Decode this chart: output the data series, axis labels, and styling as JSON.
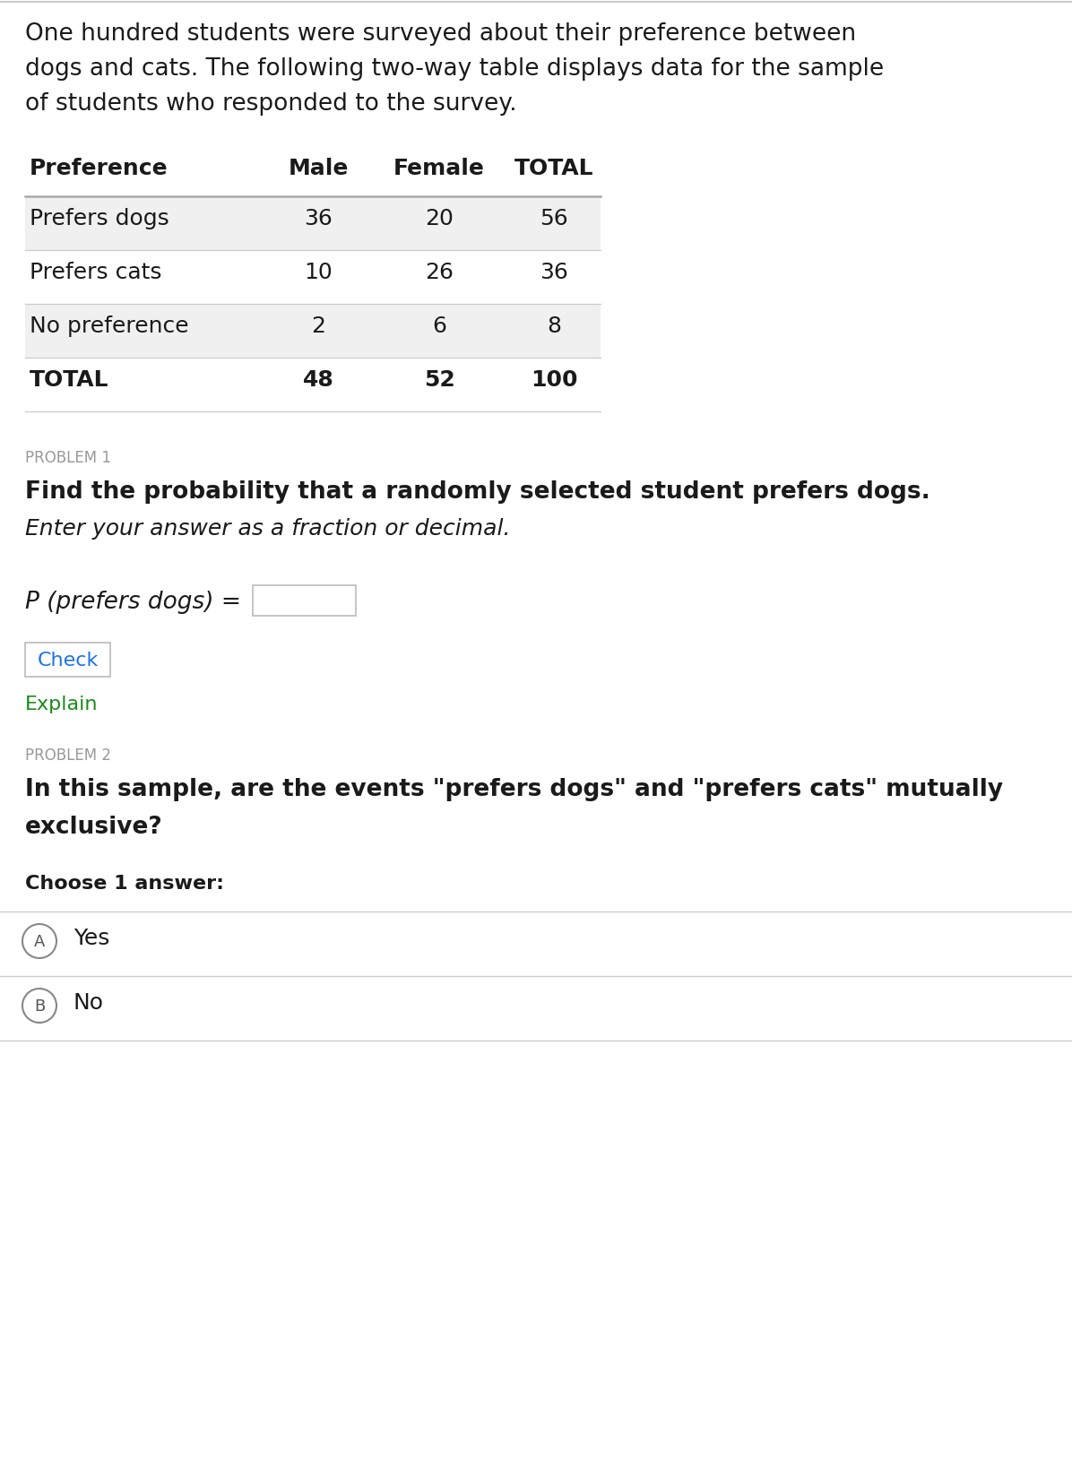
{
  "intro_line1": "One hundred students were surveyed about their preference between",
  "intro_line2": "dogs and cats. The following two-way table displays data for the sample",
  "intro_line3": "of students who responded to the survey.",
  "table_headers": [
    "Preference",
    "Male",
    "Female",
    "TOTAL"
  ],
  "table_rows": [
    [
      "Prefers dogs",
      "36",
      "20",
      "56"
    ],
    [
      "Prefers cats",
      "10",
      "26",
      "36"
    ],
    [
      "No preference",
      "2",
      "6",
      "8"
    ],
    [
      "TOTAL",
      "48",
      "52",
      "100"
    ]
  ],
  "table_shaded_rows": [
    0,
    2
  ],
  "shaded_color": "#f0f0f0",
  "white_color": "#ffffff",
  "problem1_label": "PROBLEM 1",
  "problem1_bold": "Find the probability that a randomly selected student prefers dogs.",
  "problem1_italic": "Enter your answer as a fraction or decimal.",
  "p_label": "P (prefers dogs) =",
  "check_button_text": "Check",
  "check_button_color": "#1a73e8",
  "explain_text": "Explain",
  "explain_color": "#1a8a1a",
  "problem2_label": "PROBLEM 2",
  "problem2_line1": "In this sample, are the events \"prefers dogs\" and \"prefers cats\" mutually",
  "problem2_line2": "exclusive?",
  "choose_text": "Choose 1 answer:",
  "option_A": "Yes",
  "option_B": "No",
  "divider_color": "#cccccc",
  "problem_label_color": "#999999",
  "background_color": "#ffffff",
  "text_color": "#1a1a1a",
  "circle_color": "#888888",
  "header_line_color": "#aaaaaa"
}
